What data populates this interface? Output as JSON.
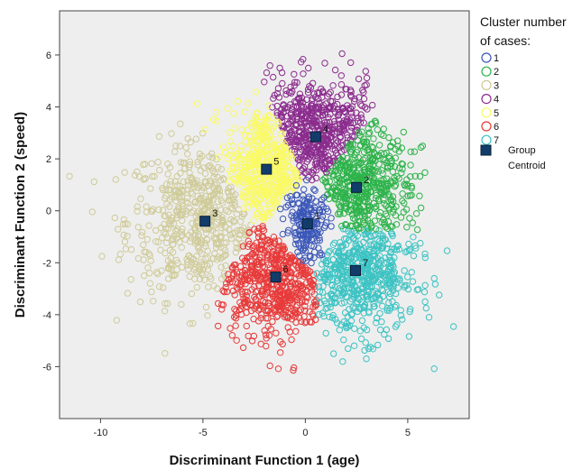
{
  "chart_data": {
    "type": "scatter",
    "xlabel": "Discriminant Function 1 (age)",
    "ylabel": "Discriminant Function 2 (speed)",
    "xlim": [
      -12,
      8
    ],
    "ylim": [
      -8,
      7.7
    ],
    "xticks": [
      -10,
      -5,
      0,
      5
    ],
    "yticks": [
      -6,
      -4,
      -2,
      0,
      2,
      4,
      6
    ],
    "grid": false,
    "background": "#eeeeee",
    "legend": {
      "title": "Cluster number of cases:",
      "title_line1": "Cluster number",
      "title_line2": "of cases:",
      "placement": "right",
      "centroid_line1": "Group",
      "centroid_line2": "Centroid"
    },
    "series": [
      {
        "name": "1",
        "color": "#3b57b8",
        "centroid": [
          0.1,
          -0.5
        ],
        "spread": [
          0.55,
          0.75
        ],
        "count": 180
      },
      {
        "name": "2",
        "color": "#2db34a",
        "centroid": [
          2.5,
          0.9
        ],
        "spread": [
          1.3,
          1.15
        ],
        "count": 480
      },
      {
        "name": "3",
        "color": "#cfcb99",
        "centroid": [
          -4.9,
          -0.4
        ],
        "spread": [
          1.9,
          1.5
        ],
        "count": 520
      },
      {
        "name": "4",
        "color": "#8b2c8e",
        "centroid": [
          0.5,
          2.85
        ],
        "spread": [
          1.5,
          1.1
        ],
        "count": 520
      },
      {
        "name": "5",
        "color": "#fafa64",
        "centroid": [
          -1.9,
          1.6
        ],
        "spread": [
          1.0,
          1.2
        ],
        "count": 460
      },
      {
        "name": "6",
        "color": "#e83a3a",
        "centroid": [
          -1.45,
          -2.55
        ],
        "spread": [
          1.4,
          1.15
        ],
        "count": 560
      },
      {
        "name": "7",
        "color": "#3cc3c3",
        "centroid": [
          2.45,
          -2.3
        ],
        "spread": [
          1.5,
          1.25
        ],
        "count": 560
      }
    ],
    "centroid_marker": {
      "color": "#123d6b",
      "border": "#081e36"
    }
  }
}
